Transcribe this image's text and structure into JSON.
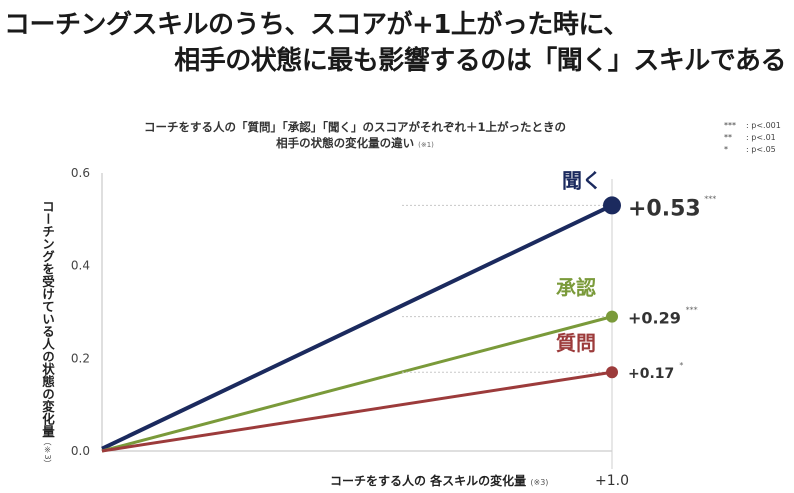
{
  "headline": {
    "line1": "コーチングスキルのうち、スコアが+1上がった時に、",
    "line2": "相手の状態に最も影響するのは「聞く」スキルである"
  },
  "chart_data": {
    "type": "line",
    "subtitle_line1": "コーチをする人の「質問」「承認」「聞く」のスコアがそれぞれ＋1上がったときの",
    "subtitle_line2": "相手の状態の変化量の違い",
    "subtitle_note": "(※1)",
    "ylabel": "コーチングを受けている人の状態の変化量",
    "ylabel_note": "（※3）",
    "xlabel": "コーチをする人の 各スキルの変化量",
    "xlabel_note": "(※3)",
    "ylim": [
      0.0,
      0.6
    ],
    "yticks": [
      "0.0",
      "0.2",
      "0.4",
      "0.6"
    ],
    "x_ticks": [
      "+1.0"
    ],
    "series": [
      {
        "name": "聞く",
        "start": 0.005,
        "end": 0.53,
        "end_label": "+0.53",
        "sig": "***",
        "color": "#1b2a5e"
      },
      {
        "name": "承認",
        "start": 0.0,
        "end": 0.29,
        "end_label": "+0.29",
        "sig": "***",
        "color": "#7a9a3a"
      },
      {
        "name": "質問",
        "start": 0.0,
        "end": 0.17,
        "end_label": "+0.17",
        "sig": "*",
        "color": "#9c3b3b"
      }
    ],
    "significance_legend": [
      {
        "stars": "***",
        "text": ": p<.001"
      },
      {
        "stars": "**",
        "text": ": p<.01"
      },
      {
        "stars": "*",
        "text": ": p<.05"
      }
    ],
    "grid": false
  }
}
